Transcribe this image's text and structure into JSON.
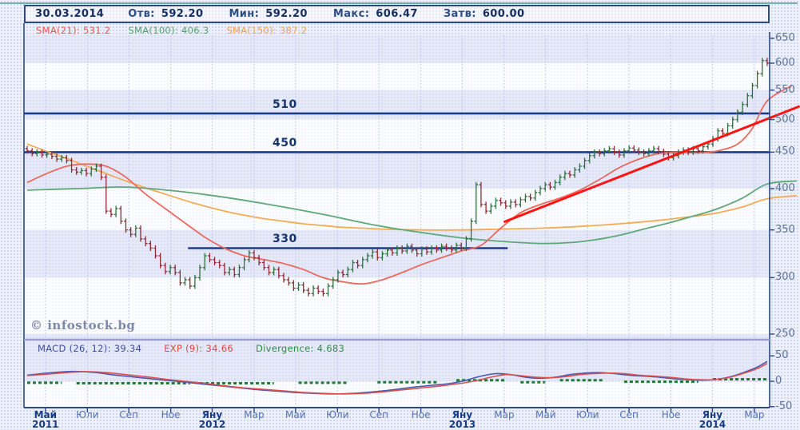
{
  "header": {
    "date": "30.03.2014",
    "fields": [
      {
        "label": "Отв:",
        "value": "592.20"
      },
      {
        "label": "Мин:",
        "value": "592.20"
      },
      {
        "label": "Макс:",
        "value": "606.47"
      },
      {
        "label": "Затв:",
        "value": "600.00"
      }
    ]
  },
  "sma_legend": [
    {
      "label": "SMA(21):",
      "value": "531.2",
      "color": "#e4574e"
    },
    {
      "label": "SMA(100):",
      "value": "406.3",
      "color": "#55a06b"
    },
    {
      "label": "SMA(150):",
      "value": "387.2",
      "color": "#f2a24e"
    }
  ],
  "macd_legend": [
    {
      "label": "MACD (26, 12):",
      "value": "39.34",
      "color": "#3d4f9a"
    },
    {
      "label": "EXP (9):",
      "value": "34.66",
      "color": "#dc4a42"
    },
    {
      "label": "Divergence:",
      "value": "4.683",
      "color": "#2f8f45"
    }
  ],
  "watermark": "© infostock.bg",
  "colors": {
    "background": "#eef0fa",
    "band_blue": "#dfe4f6",
    "band_white": "#ffffff",
    "axis": "#2c4a86",
    "bar_up": "#2e6f3c",
    "bar_down": "#8f2b33",
    "level_line": "#1c3c8c",
    "sma21_line": "#ea6a60",
    "sma100_line": "#5fa878",
    "sma150_line": "#f4ab55",
    "trend_line": "#ff1412",
    "macd_line": "#4a58b0",
    "exp_line": "#d95050",
    "divergence": "#1f7c33"
  },
  "chart_data": {
    "type": "candlestick",
    "scale": "log",
    "x_unit": "weeks (May 2011 - Mar 2014)",
    "title": "",
    "price_axis_ticks": [
      650,
      600,
      550,
      500,
      450,
      400,
      350,
      300,
      250
    ],
    "macd_axis_ticks": [
      50,
      0,
      -50
    ],
    "months": [
      {
        "label": "Май",
        "week": 3.7,
        "bold": true,
        "year": "2011"
      },
      {
        "label": "Юли",
        "week": 12.2
      },
      {
        "label": "Сеп",
        "week": 20.6
      },
      {
        "label": "Ное",
        "week": 29.1
      },
      {
        "label": "Яну",
        "week": 37.5,
        "bold": true,
        "year": "2012"
      },
      {
        "label": "Мар",
        "week": 46.0
      },
      {
        "label": "Май",
        "week": 54.4
      },
      {
        "label": "Юли",
        "week": 62.9
      },
      {
        "label": "Сеп",
        "week": 71.3
      },
      {
        "label": "Ное",
        "week": 79.8
      },
      {
        "label": "Яну",
        "week": 88.2,
        "bold": true,
        "year": "2013"
      },
      {
        "label": "Мар",
        "week": 96.7
      },
      {
        "label": "Май",
        "week": 105.1
      },
      {
        "label": "Юли",
        "week": 113.6
      },
      {
        "label": "Сеп",
        "week": 122.0
      },
      {
        "label": "Ное",
        "week": 130.5
      },
      {
        "label": "Яну",
        "week": 138.9,
        "bold": true,
        "year": "2014"
      },
      {
        "label": "Мар",
        "week": 147.4
      }
    ],
    "weekly_closes": [
      452,
      448,
      450,
      446,
      447,
      444,
      440,
      442,
      438,
      425,
      422,
      424,
      420,
      426,
      430,
      415,
      372,
      368,
      375,
      360,
      350,
      345,
      352,
      340,
      335,
      330,
      322,
      312,
      306,
      310,
      305,
      295,
      298,
      292,
      300,
      310,
      322,
      318,
      315,
      312,
      305,
      308,
      303,
      310,
      318,
      325,
      320,
      315,
      310,
      305,
      308,
      302,
      298,
      295,
      290,
      293,
      288,
      285,
      290,
      287,
      285,
      292,
      298,
      305,
      303,
      308,
      315,
      312,
      318,
      322,
      326,
      320,
      324,
      328,
      325,
      330,
      327,
      332,
      328,
      324,
      329,
      326,
      330,
      328,
      332,
      330,
      328,
      333,
      330,
      340,
      360,
      405,
      380,
      372,
      378,
      385,
      382,
      378,
      383,
      380,
      386,
      390,
      388,
      395,
      400,
      405,
      402,
      408,
      415,
      420,
      418,
      425,
      430,
      438,
      445,
      450,
      448,
      452,
      455,
      450,
      446,
      452,
      456,
      453,
      450,
      448,
      452,
      455,
      451,
      447,
      442,
      445,
      450,
      453,
      450,
      455,
      452,
      458,
      462,
      470,
      482,
      478,
      490,
      500,
      512,
      525,
      540,
      558,
      580,
      605,
      600
    ],
    "support_resistance": [
      {
        "label": "510",
        "value": 510
      },
      {
        "label": "450",
        "value": 450
      },
      {
        "label": "330",
        "value": 330,
        "from_week": 32.6,
        "to_week": 97.4
      }
    ],
    "trend_line": {
      "from": {
        "week": 96.6,
        "price": 359
      },
      "to": {
        "week": 156.6,
        "price": 522
      }
    },
    "sma21": [
      [
        0,
        408
      ],
      [
        4,
        420
      ],
      [
        8,
        430
      ],
      [
        12,
        433
      ],
      [
        16,
        430
      ],
      [
        20,
        415
      ],
      [
        24,
        393
      ],
      [
        28,
        375
      ],
      [
        32,
        358
      ],
      [
        36,
        342
      ],
      [
        40,
        330
      ],
      [
        44,
        322
      ],
      [
        48,
        318
      ],
      [
        52,
        314
      ],
      [
        56,
        308
      ],
      [
        60,
        300
      ],
      [
        64,
        296
      ],
      [
        68,
        294
      ],
      [
        72,
        298
      ],
      [
        76,
        305
      ],
      [
        80,
        313
      ],
      [
        84,
        320
      ],
      [
        88,
        327
      ],
      [
        92,
        333
      ],
      [
        96,
        352
      ],
      [
        100,
        370
      ],
      [
        104,
        380
      ],
      [
        108,
        388
      ],
      [
        112,
        398
      ],
      [
        116,
        412
      ],
      [
        120,
        428
      ],
      [
        124,
        440
      ],
      [
        128,
        448
      ],
      [
        132,
        450
      ],
      [
        136,
        449
      ],
      [
        140,
        452
      ],
      [
        144,
        462
      ],
      [
        147,
        486
      ],
      [
        150,
        531
      ],
      [
        155,
        558
      ]
    ],
    "sma100": [
      [
        0,
        398
      ],
      [
        10,
        400
      ],
      [
        20,
        402
      ],
      [
        30,
        397
      ],
      [
        40,
        389
      ],
      [
        50,
        379
      ],
      [
        60,
        368
      ],
      [
        70,
        356
      ],
      [
        80,
        347
      ],
      [
        90,
        340
      ],
      [
        100,
        336
      ],
      [
        105,
        335
      ],
      [
        110,
        336
      ],
      [
        115,
        339
      ],
      [
        120,
        344
      ],
      [
        125,
        351
      ],
      [
        130,
        358
      ],
      [
        135,
        366
      ],
      [
        140,
        375
      ],
      [
        145,
        388
      ],
      [
        150,
        406
      ],
      [
        156,
        410
      ]
    ],
    "sma150": [
      [
        0,
        462
      ],
      [
        4,
        451
      ],
      [
        8,
        441
      ],
      [
        12,
        430
      ],
      [
        16,
        420
      ],
      [
        20,
        410
      ],
      [
        24,
        401
      ],
      [
        28,
        393
      ],
      [
        32,
        385
      ],
      [
        36,
        378
      ],
      [
        40,
        372
      ],
      [
        44,
        367
      ],
      [
        48,
        363
      ],
      [
        52,
        360
      ],
      [
        56,
        357
      ],
      [
        60,
        355
      ],
      [
        64,
        353
      ],
      [
        68,
        352
      ],
      [
        72,
        351
      ],
      [
        80,
        350
      ],
      [
        88,
        350
      ],
      [
        96,
        351
      ],
      [
        104,
        352
      ],
      [
        112,
        354
      ],
      [
        120,
        357
      ],
      [
        128,
        361
      ],
      [
        134,
        365
      ],
      [
        140,
        370
      ],
      [
        145,
        377
      ],
      [
        150,
        387
      ],
      [
        156,
        391
      ]
    ],
    "macd_line": [
      [
        0,
        12
      ],
      [
        4,
        16
      ],
      [
        8,
        19
      ],
      [
        11,
        19
      ],
      [
        14,
        17
      ],
      [
        18,
        12
      ],
      [
        22,
        8
      ],
      [
        26,
        4
      ],
      [
        30,
        0
      ],
      [
        34,
        -4
      ],
      [
        38,
        -8
      ],
      [
        42,
        -12
      ],
      [
        46,
        -16
      ],
      [
        50,
        -19
      ],
      [
        54,
        -22
      ],
      [
        58,
        -24
      ],
      [
        62,
        -25
      ],
      [
        66,
        -24
      ],
      [
        70,
        -21
      ],
      [
        74,
        -17
      ],
      [
        78,
        -12
      ],
      [
        82,
        -8
      ],
      [
        86,
        -4
      ],
      [
        89,
        2
      ],
      [
        92,
        10
      ],
      [
        95,
        15
      ],
      [
        98,
        13
      ],
      [
        101,
        8
      ],
      [
        104,
        6
      ],
      [
        107,
        8
      ],
      [
        110,
        13
      ],
      [
        113,
        16
      ],
      [
        116,
        17
      ],
      [
        119,
        15
      ],
      [
        122,
        12
      ],
      [
        125,
        10
      ],
      [
        128,
        8
      ],
      [
        131,
        5
      ],
      [
        134,
        3
      ],
      [
        137,
        2
      ],
      [
        140,
        4
      ],
      [
        143,
        10
      ],
      [
        146,
        20
      ],
      [
        148,
        28
      ],
      [
        150,
        39
      ]
    ],
    "exp_line": [
      [
        0,
        11
      ],
      [
        4,
        14
      ],
      [
        8,
        17
      ],
      [
        12,
        19
      ],
      [
        16,
        17
      ],
      [
        20,
        13
      ],
      [
        24,
        9
      ],
      [
        28,
        4
      ],
      [
        32,
        0
      ],
      [
        36,
        -4
      ],
      [
        40,
        -9
      ],
      [
        44,
        -13
      ],
      [
        48,
        -16
      ],
      [
        52,
        -19
      ],
      [
        56,
        -22
      ],
      [
        60,
        -24
      ],
      [
        64,
        -25
      ],
      [
        68,
        -24
      ],
      [
        72,
        -21
      ],
      [
        76,
        -17
      ],
      [
        80,
        -13
      ],
      [
        84,
        -9
      ],
      [
        88,
        -4
      ],
      [
        91,
        1
      ],
      [
        94,
        8
      ],
      [
        97,
        13
      ],
      [
        100,
        11
      ],
      [
        103,
        8
      ],
      [
        106,
        7
      ],
      [
        109,
        9
      ],
      [
        112,
        13
      ],
      [
        115,
        15
      ],
      [
        118,
        16
      ],
      [
        121,
        15
      ],
      [
        124,
        12
      ],
      [
        127,
        10
      ],
      [
        130,
        8
      ],
      [
        133,
        5
      ],
      [
        136,
        3
      ],
      [
        139,
        3
      ],
      [
        142,
        7
      ],
      [
        145,
        15
      ],
      [
        148,
        25
      ],
      [
        150,
        35
      ]
    ],
    "divergence_segments": [
      {
        "from": 0,
        "to": 7,
        "v": -3
      },
      {
        "from": 10,
        "to": 33,
        "v": -4
      },
      {
        "from": 35,
        "to": 50,
        "v": -4
      },
      {
        "from": 55,
        "to": 65,
        "v": -3
      },
      {
        "from": 71,
        "to": 83,
        "v": -2
      },
      {
        "from": 87,
        "to": 97,
        "v": 2
      },
      {
        "from": 100,
        "to": 105,
        "v": -2
      },
      {
        "from": 108,
        "to": 117,
        "v": 2
      },
      {
        "from": 121,
        "to": 136,
        "v": -1
      },
      {
        "from": 139,
        "to": 150,
        "v": 4
      }
    ]
  }
}
